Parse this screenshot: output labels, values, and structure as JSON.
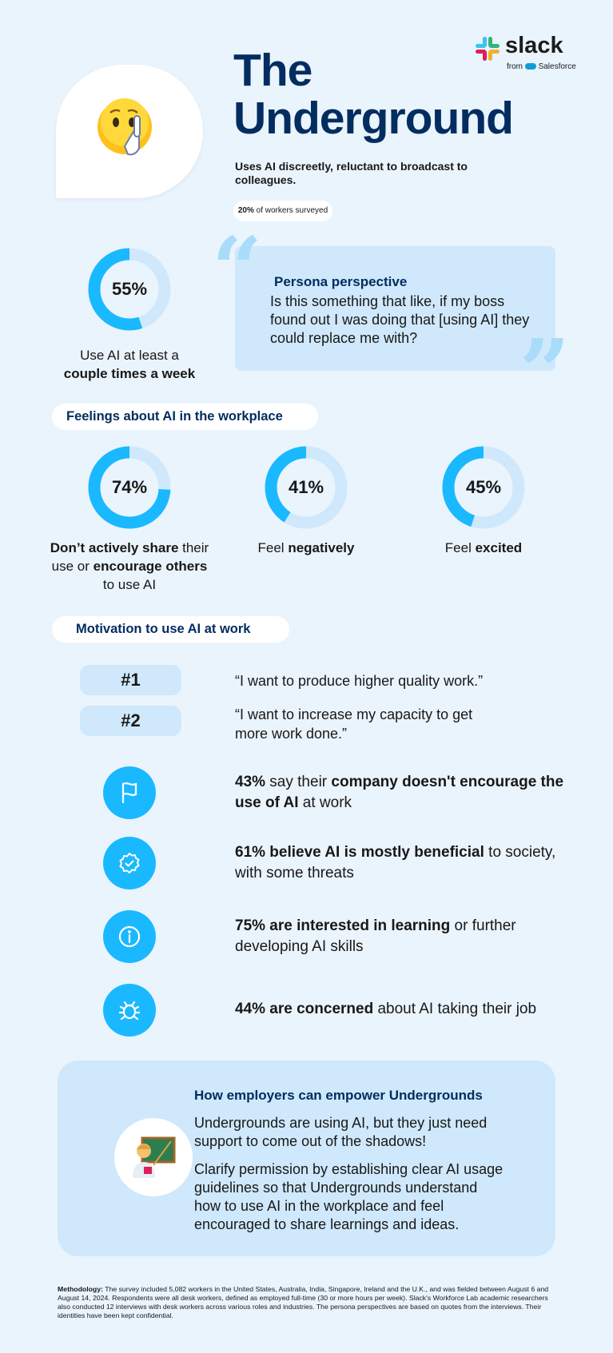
{
  "brand": {
    "name": "slack",
    "byline": "from",
    "parent": "Salesforce",
    "colors": [
      "#36c5f0",
      "#2eb67d",
      "#ecb22e",
      "#e01e5a"
    ]
  },
  "header": {
    "title_line1": "The",
    "title_line2": "Underground",
    "subtitle": "Uses AI discreetly, reluctant to broadcast to colleagues.",
    "survey_pct": "20%",
    "survey_text": " of workers surveyed",
    "emoji_icon": "shushing-face-icon"
  },
  "usage": {
    "value": 55,
    "label": "55%",
    "caption_plain": "Use AI at least a",
    "caption_bold": "couple times a week"
  },
  "persona": {
    "heading": "Persona perspective",
    "quote": "Is this something that like, if my boss found out I was doing that [using AI] they could replace me with?",
    "open_mark": "“",
    "close_mark": "”"
  },
  "feelings": {
    "heading": "Feelings about AI in the workplace",
    "items": [
      {
        "value": 74,
        "label": "74%"
      },
      {
        "value": 41,
        "label": "41%",
        "caption_plain": "Feel ",
        "caption_bold": "negatively"
      },
      {
        "value": 45,
        "label": "45%",
        "caption_plain": "Feel ",
        "caption_bold": "excited"
      }
    ],
    "first_caption": {
      "b1": "Don’t actively share",
      "t1": " their use or ",
      "b2": "encourage",
      "t2": " ",
      "b3": "others",
      "t3": " to use AI"
    }
  },
  "motivation": {
    "heading": "Motivation to use AI at work",
    "ranks": [
      {
        "rank": "#1",
        "text": "“I want to produce higher quality work.”"
      },
      {
        "rank": "#2",
        "text": "“I want to increase my capacity to get more work done.”"
      }
    ],
    "stats": [
      {
        "icon": "flag-icon",
        "b1": "43%",
        "t1": " say their ",
        "b2": "company doesn't encourage the use of AI",
        "t2": " at work"
      },
      {
        "icon": "verified-badge-icon",
        "b1": "61% believe AI is mostly beneficial",
        "t1": " to society, with some threats"
      },
      {
        "icon": "info-icon",
        "b1": "75% are interested in learning",
        "t1": " or further developing AI skills"
      },
      {
        "icon": "bug-icon",
        "b1": "44% are concerned",
        "t1": " about AI taking their job"
      }
    ]
  },
  "empower": {
    "heading": "How employers can empower Undergrounds",
    "p1": "Undergrounds are using AI, but they just need support to come out of the shadows!",
    "p2": "Clarify permission by establishing clear AI usage guidelines so that Undergrounds understand how to use AI in the workplace and feel encouraged to share learnings and ideas.",
    "icon": "teacher-icon"
  },
  "methodology": {
    "label": "Methodology:",
    "text": " The survey included 5,082 workers in the United States, Australia, India, Singapore, Ireland and the U.K., and was fielded between August 6 and August 14, 2024. Respondents were all desk workers, defined as employed full-time (30 or more hours per week). Slack's Workforce Lab academic researchers also conducted 12 interviews with desk workers across various roles and industries. The persona perspectives are based on quotes from the interviews. Their identities have been kept confidential."
  },
  "colors": {
    "navy": "#032d60",
    "accent": "#1ab9ff",
    "track": "#cfe8fb",
    "background": "#eaf4fd"
  }
}
